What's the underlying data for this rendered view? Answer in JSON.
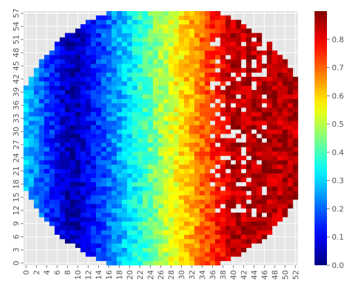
{
  "chart_data": {
    "type": "heatmap",
    "title": "",
    "xlabel": "",
    "ylabel": "",
    "n_cols": 53,
    "n_rows": 58,
    "x_tick_labels": [
      "0",
      "2",
      "4",
      "6",
      "8",
      "10",
      "12",
      "14",
      "16",
      "18",
      "20",
      "22",
      "24",
      "26",
      "28",
      "30",
      "32",
      "34",
      "36",
      "38",
      "40",
      "42",
      "44",
      "46",
      "48",
      "50",
      "52"
    ],
    "y_tick_labels": [
      "0",
      "3",
      "6",
      "9",
      "12",
      "15",
      "18",
      "21",
      "24",
      "27",
      "30",
      "33",
      "36",
      "39",
      "42",
      "45",
      "48",
      "51",
      "54",
      "57"
    ],
    "colorbar": {
      "colormap": "jet",
      "vmin": 0.0,
      "vmax": 0.9,
      "ticks": [
        "0.0",
        "0.1",
        "0.2",
        "0.3",
        "0.4",
        "0.5",
        "0.6",
        "0.7",
        "0.8"
      ]
    },
    "masked_region": "outside circular wafer boundary (center column ~26.5, center row ~28.5, radius ~28.5)",
    "value_gradient": "values increase left to right from about 0.05 near column 10 to about 0.85 near column 40",
    "background_color": "#e5e5e5",
    "grid_color": "#ffffff"
  }
}
